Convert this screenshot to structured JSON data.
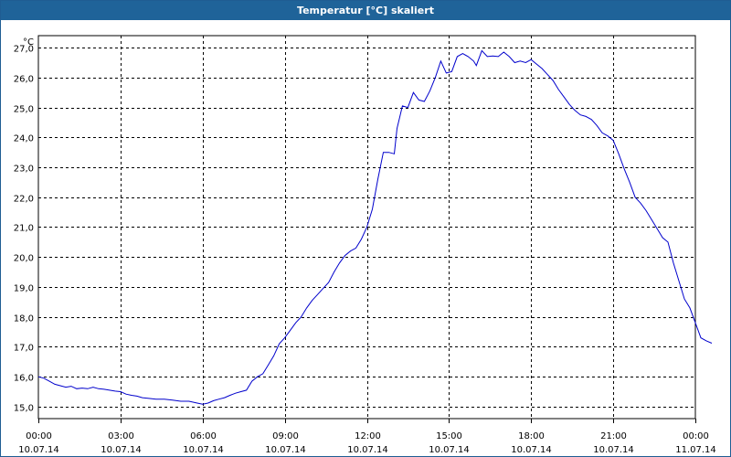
{
  "window": {
    "title": "Temperatur [°C] skaliert"
  },
  "chart_data": {
    "type": "line",
    "title": "Temperatur [°C] skaliert",
    "ylabel": "°C",
    "xlabel": "",
    "ylim": [
      14.6,
      27.4
    ],
    "xlim": [
      0,
      24
    ],
    "grid": true,
    "line_color": "#0000cc",
    "y_ticks": [
      {
        "value": 15,
        "label": "15,0"
      },
      {
        "value": 16,
        "label": "16,0"
      },
      {
        "value": 17,
        "label": "17,0"
      },
      {
        "value": 18,
        "label": "18,0"
      },
      {
        "value": 19,
        "label": "19,0"
      },
      {
        "value": 20,
        "label": "20,0"
      },
      {
        "value": 21,
        "label": "21,0"
      },
      {
        "value": 22,
        "label": "22,0"
      },
      {
        "value": 23,
        "label": "23,0"
      },
      {
        "value": 24,
        "label": "24,0"
      },
      {
        "value": 25,
        "label": "25,0"
      },
      {
        "value": 26,
        "label": "26,0"
      },
      {
        "value": 27,
        "label": "27,0"
      }
    ],
    "x_ticks": [
      {
        "hour": 0,
        "time": "00:00",
        "date": "10.07.14"
      },
      {
        "hour": 3,
        "time": "03:00",
        "date": "10.07.14"
      },
      {
        "hour": 6,
        "time": "06:00",
        "date": "10.07.14"
      },
      {
        "hour": 9,
        "time": "09:00",
        "date": "10.07.14"
      },
      {
        "hour": 12,
        "time": "12:00",
        "date": "10.07.14"
      },
      {
        "hour": 15,
        "time": "15:00",
        "date": "10.07.14"
      },
      {
        "hour": 18,
        "time": "18:00",
        "date": "10.07.14"
      },
      {
        "hour": 21,
        "time": "21:00",
        "date": "10.07.14"
      },
      {
        "hour": 24,
        "time": "00:00",
        "date": "11.07.14"
      }
    ],
    "series": [
      {
        "points": [
          [
            0.0,
            16.0
          ],
          [
            0.2,
            15.95
          ],
          [
            0.4,
            15.85
          ],
          [
            0.6,
            15.75
          ],
          [
            0.8,
            15.7
          ],
          [
            1.0,
            15.65
          ],
          [
            1.2,
            15.68
          ],
          [
            1.4,
            15.6
          ],
          [
            1.6,
            15.62
          ],
          [
            1.8,
            15.6
          ],
          [
            2.0,
            15.65
          ],
          [
            2.2,
            15.6
          ],
          [
            2.4,
            15.58
          ],
          [
            2.6,
            15.55
          ],
          [
            2.8,
            15.52
          ],
          [
            3.0,
            15.5
          ],
          [
            3.2,
            15.42
          ],
          [
            3.4,
            15.38
          ],
          [
            3.6,
            15.35
          ],
          [
            3.8,
            15.3
          ],
          [
            4.0,
            15.28
          ],
          [
            4.3,
            15.25
          ],
          [
            4.6,
            15.25
          ],
          [
            4.9,
            15.22
          ],
          [
            5.2,
            15.18
          ],
          [
            5.5,
            15.18
          ],
          [
            5.8,
            15.12
          ],
          [
            6.0,
            15.08
          ],
          [
            6.2,
            15.12
          ],
          [
            6.4,
            15.2
          ],
          [
            6.6,
            15.25
          ],
          [
            6.8,
            15.3
          ],
          [
            7.0,
            15.38
          ],
          [
            7.2,
            15.45
          ],
          [
            7.4,
            15.5
          ],
          [
            7.6,
            15.55
          ],
          [
            7.8,
            15.85
          ],
          [
            8.0,
            16.0
          ],
          [
            8.2,
            16.1
          ],
          [
            8.4,
            16.4
          ],
          [
            8.6,
            16.7
          ],
          [
            8.8,
            17.1
          ],
          [
            9.0,
            17.3
          ],
          [
            9.2,
            17.55
          ],
          [
            9.4,
            17.8
          ],
          [
            9.6,
            18.0
          ],
          [
            9.8,
            18.3
          ],
          [
            10.0,
            18.55
          ],
          [
            10.2,
            18.75
          ],
          [
            10.4,
            18.95
          ],
          [
            10.6,
            19.15
          ],
          [
            10.8,
            19.5
          ],
          [
            11.0,
            19.8
          ],
          [
            11.2,
            20.05
          ],
          [
            11.4,
            20.2
          ],
          [
            11.6,
            20.3
          ],
          [
            11.8,
            20.6
          ],
          [
            12.0,
            21.0
          ],
          [
            12.2,
            21.6
          ],
          [
            12.4,
            22.6
          ],
          [
            12.6,
            23.5
          ],
          [
            12.8,
            23.5
          ],
          [
            13.0,
            23.45
          ],
          [
            13.1,
            24.3
          ],
          [
            13.3,
            25.05
          ],
          [
            13.5,
            25.0
          ],
          [
            13.7,
            25.5
          ],
          [
            13.9,
            25.25
          ],
          [
            14.1,
            25.2
          ],
          [
            14.3,
            25.55
          ],
          [
            14.5,
            26.0
          ],
          [
            14.7,
            26.55
          ],
          [
            14.9,
            26.15
          ],
          [
            15.1,
            26.2
          ],
          [
            15.3,
            26.7
          ],
          [
            15.5,
            26.8
          ],
          [
            15.7,
            26.7
          ],
          [
            15.9,
            26.55
          ],
          [
            16.0,
            26.4
          ],
          [
            16.2,
            26.9
          ],
          [
            16.4,
            26.7
          ],
          [
            16.6,
            26.72
          ],
          [
            16.8,
            26.7
          ],
          [
            17.0,
            26.85
          ],
          [
            17.2,
            26.7
          ],
          [
            17.4,
            26.5
          ],
          [
            17.6,
            26.55
          ],
          [
            17.8,
            26.5
          ],
          [
            18.0,
            26.6
          ],
          [
            18.2,
            26.45
          ],
          [
            18.4,
            26.3
          ],
          [
            18.6,
            26.1
          ],
          [
            18.8,
            25.9
          ],
          [
            19.0,
            25.6
          ],
          [
            19.2,
            25.35
          ],
          [
            19.4,
            25.1
          ],
          [
            19.6,
            24.9
          ],
          [
            19.8,
            24.75
          ],
          [
            20.0,
            24.7
          ],
          [
            20.2,
            24.6
          ],
          [
            20.4,
            24.4
          ],
          [
            20.6,
            24.15
          ],
          [
            20.8,
            24.05
          ],
          [
            21.0,
            23.9
          ],
          [
            21.2,
            23.45
          ],
          [
            21.4,
            22.95
          ],
          [
            21.6,
            22.5
          ],
          [
            21.8,
            22.0
          ],
          [
            22.0,
            21.8
          ],
          [
            22.2,
            21.55
          ],
          [
            22.4,
            21.25
          ],
          [
            22.6,
            20.95
          ],
          [
            22.8,
            20.65
          ],
          [
            23.0,
            20.5
          ],
          [
            23.2,
            19.8
          ],
          [
            23.4,
            19.2
          ],
          [
            23.6,
            18.6
          ],
          [
            23.8,
            18.3
          ],
          [
            24.0,
            17.8
          ],
          [
            24.2,
            17.3
          ],
          [
            24.4,
            17.2
          ],
          [
            24.6,
            17.12
          ]
        ]
      }
    ]
  }
}
